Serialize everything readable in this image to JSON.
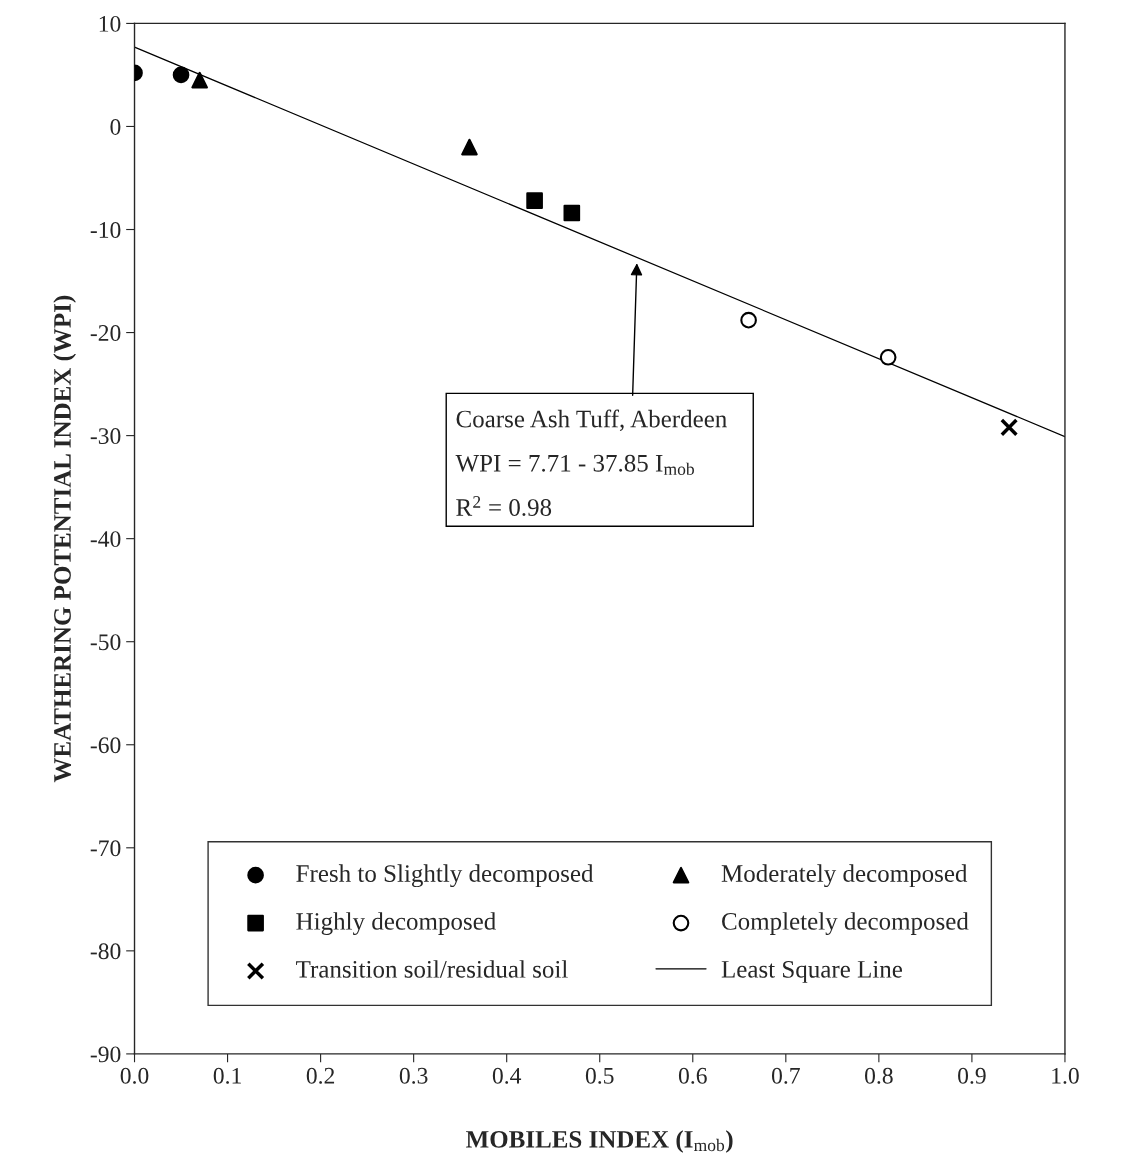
{
  "chart_data": {
    "type": "scatter",
    "xlabel": "MOBILES INDEX (I$_{mob}$)",
    "ylabel": "WEATHERING POTENTIAL INDEX (WPI)",
    "xlim": [
      0,
      1.0
    ],
    "ylim": [
      -90,
      10
    ],
    "xticks": [
      {
        "value": 0,
        "label": "0.0"
      },
      0.1,
      0.2,
      0.3,
      0.4,
      0.5,
      0.6,
      0.7,
      0.8,
      0.9,
      {
        "value": 1.0,
        "label": "1.0"
      }
    ],
    "yticks": [
      -90,
      -80,
      -70,
      -60,
      -50,
      -40,
      -30,
      -20,
      -10,
      0,
      10
    ],
    "grid": false,
    "legend": "bottom",
    "series": [
      {
        "name": "Fresh to Slightly decomposed",
        "color": "#000000",
        "marker": "circle",
        "x": [
          0.0,
          0.05
        ],
        "values": [
          5.2,
          5.0
        ]
      },
      {
        "name": "Moderately decomposed",
        "color": "#000000",
        "marker": "triangle",
        "x": [
          0.07,
          0.36
        ],
        "values": [
          4.5,
          -2.0
        ]
      },
      {
        "name": "Highly decomposed",
        "color": "#000000",
        "marker": "square",
        "x": [
          0.43,
          0.47
        ],
        "values": [
          -7.2,
          -8.4
        ]
      },
      {
        "name": "Completely decomposed",
        "color": "#ffffff",
        "marker": "circle",
        "x": [
          0.66,
          0.81
        ],
        "values": [
          -18.8,
          -22.4
        ]
      },
      {
        "name": "Transition soil/residual soil",
        "color": "#000000",
        "marker": "cross",
        "x": [
          0.94
        ],
        "values": [
          -29.2
        ]
      },
      {
        "name": "Least Square Line",
        "type": "line",
        "color": "#000000",
        "marker": "none",
        "x": [
          0.0,
          1.0
        ],
        "values": [
          7.7,
          -30.1
        ]
      }
    ],
    "annotations": [
      {
        "text": "Coarse Ash Tuff, Aberdeen",
        "x": 0.54,
        "y": -13
      },
      "WPI = 7.71 - 37.85 I$_{mob}$",
      "R$^{2}$ = 0.98"
    ]
  }
}
